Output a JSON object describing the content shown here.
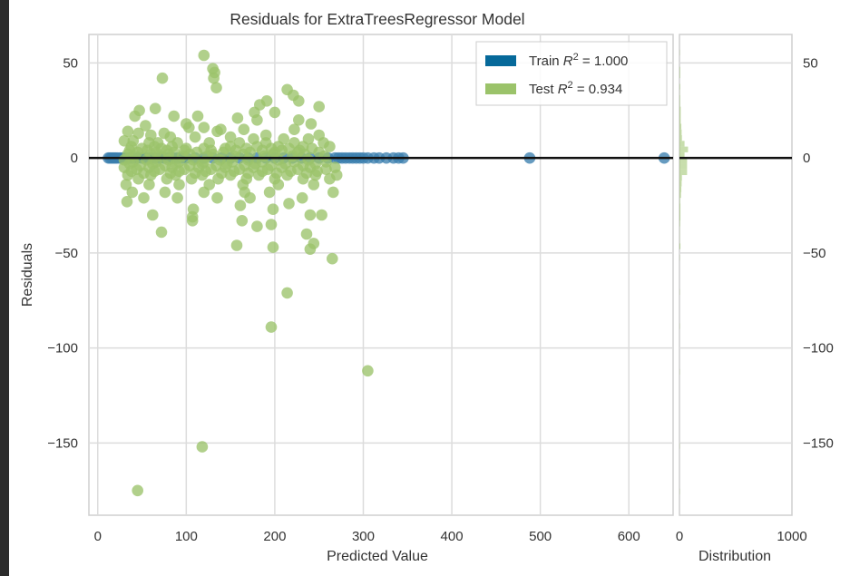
{
  "chart_data": {
    "type": "scatter",
    "title": "Residuals for ExtraTreesRegressor Model",
    "xlabel": "Predicted Value",
    "ylabel": "Residuals",
    "xlim": [
      -10,
      650
    ],
    "ylim": [
      -188,
      65
    ],
    "xticks": [
      0,
      100,
      200,
      300,
      400,
      500,
      600
    ],
    "yticks": [
      50,
      0,
      -50,
      -100,
      -150
    ],
    "tick_text": {
      "x": [
        "0",
        "100",
        "200",
        "300",
        "400",
        "500",
        "600"
      ],
      "y": [
        "50",
        "0",
        "−50",
        "−100",
        "−150"
      ]
    },
    "grid": true,
    "zero_line": 0,
    "legend": {
      "placement": "top-right",
      "entries": [
        {
          "name": "Train",
          "r2_label": "R",
          "r2_sup": "2",
          "r2_value": " = 1.000",
          "color": "#1f77b4"
        },
        {
          "name": "Test",
          "r2_label": "R",
          "r2_sup": "2",
          "r2_value": " = 0.934",
          "color": "#9bc36a"
        }
      ]
    },
    "series": [
      {
        "name": "Train",
        "color": "#3b7fae",
        "points": [
          [
            12,
            0
          ],
          [
            14,
            0
          ],
          [
            16,
            0
          ],
          [
            18,
            0
          ],
          [
            20,
            0
          ],
          [
            22,
            0
          ],
          [
            25,
            0
          ],
          [
            28,
            0
          ],
          [
            32,
            0
          ],
          [
            36,
            0
          ],
          [
            40,
            0
          ],
          [
            45,
            0
          ],
          [
            50,
            0
          ],
          [
            55,
            0
          ],
          [
            60,
            0
          ],
          [
            65,
            0
          ],
          [
            70,
            0
          ],
          [
            75,
            0
          ],
          [
            80,
            0
          ],
          [
            85,
            0
          ],
          [
            90,
            0
          ],
          [
            95,
            0
          ],
          [
            100,
            0
          ],
          [
            110,
            0
          ],
          [
            120,
            0
          ],
          [
            130,
            0
          ],
          [
            140,
            0
          ],
          [
            150,
            0
          ],
          [
            160,
            0
          ],
          [
            170,
            0
          ],
          [
            180,
            0
          ],
          [
            190,
            0
          ],
          [
            200,
            0
          ],
          [
            210,
            0
          ],
          [
            220,
            0
          ],
          [
            230,
            0
          ],
          [
            240,
            0
          ],
          [
            250,
            0
          ],
          [
            260,
            0
          ],
          [
            268,
            0
          ],
          [
            272,
            0
          ],
          [
            276,
            0
          ],
          [
            280,
            0
          ],
          [
            284,
            0
          ],
          [
            288,
            0
          ],
          [
            292,
            0
          ],
          [
            296,
            0
          ],
          [
            300,
            0
          ],
          [
            305,
            0
          ],
          [
            312,
            0
          ],
          [
            318,
            0
          ],
          [
            326,
            0
          ],
          [
            334,
            0
          ],
          [
            340,
            0
          ],
          [
            345,
            0
          ],
          [
            488,
            0
          ],
          [
            640,
            0
          ]
        ]
      },
      {
        "name": "Test",
        "color": "#9bc36a",
        "points": [
          [
            120,
            54
          ],
          [
            130,
            47
          ],
          [
            132,
            45
          ],
          [
            131,
            42
          ],
          [
            73,
            42
          ],
          [
            134,
            37
          ],
          [
            214,
            36
          ],
          [
            221,
            33
          ],
          [
            227,
            30
          ],
          [
            191,
            30
          ],
          [
            183,
            28
          ],
          [
            250,
            27
          ],
          [
            65,
            26
          ],
          [
            47,
            25
          ],
          [
            177,
            24
          ],
          [
            200,
            24
          ],
          [
            42,
            22
          ],
          [
            86,
            22
          ],
          [
            113,
            22
          ],
          [
            158,
            21
          ],
          [
            180,
            20
          ],
          [
            227,
            20
          ],
          [
            241,
            18
          ],
          [
            100,
            18
          ],
          [
            54,
            17
          ],
          [
            103,
            16
          ],
          [
            120,
            16
          ],
          [
            139,
            15
          ],
          [
            165,
            15
          ],
          [
            222,
            15
          ],
          [
            34,
            14
          ],
          [
            46,
            13
          ],
          [
            75,
            13
          ],
          [
            135,
            14
          ],
          [
            190,
            12
          ],
          [
            250,
            12
          ],
          [
            60,
            12
          ],
          [
            82,
            11
          ],
          [
            110,
            11
          ],
          [
            150,
            11
          ],
          [
            176,
            10
          ],
          [
            210,
            10
          ],
          [
            238,
            10
          ],
          [
            30,
            9
          ],
          [
            40,
            9
          ],
          [
            58,
            8
          ],
          [
            68,
            8
          ],
          [
            90,
            8
          ],
          [
            126,
            8
          ],
          [
            160,
            8
          ],
          [
            190,
            8
          ],
          [
            222,
            8
          ],
          [
            255,
            8
          ],
          [
            38,
            6
          ],
          [
            64,
            6
          ],
          [
            84,
            6
          ],
          [
            150,
            6
          ],
          [
            180,
            6
          ],
          [
            204,
            6
          ],
          [
            232,
            6
          ],
          [
            262,
            6
          ],
          [
            50,
            5
          ],
          [
            72,
            5
          ],
          [
            100,
            5
          ],
          [
            120,
            5
          ],
          [
            144,
            5
          ],
          [
            168,
            5
          ],
          [
            196,
            5
          ],
          [
            216,
            5
          ],
          [
            242,
            5
          ],
          [
            36,
            4
          ],
          [
            56,
            4
          ],
          [
            78,
            4
          ],
          [
            98,
            4
          ],
          [
            128,
            4
          ],
          [
            156,
            4
          ],
          [
            186,
            4
          ],
          [
            208,
            4
          ],
          [
            228,
            4
          ],
          [
            45,
            3
          ],
          [
            66,
            3
          ],
          [
            86,
            3
          ],
          [
            112,
            3
          ],
          [
            142,
            3
          ],
          [
            172,
            3
          ],
          [
            200,
            3
          ],
          [
            226,
            3
          ],
          [
            250,
            3
          ],
          [
            34,
            2
          ],
          [
            60,
            2
          ],
          [
            80,
            2
          ],
          [
            104,
            2
          ],
          [
            130,
            2
          ],
          [
            164,
            2
          ],
          [
            198,
            2
          ],
          [
            234,
            2
          ],
          [
            42,
            1
          ],
          [
            70,
            1
          ],
          [
            96,
            1
          ],
          [
            124,
            1
          ],
          [
            154,
            1
          ],
          [
            188,
            1
          ],
          [
            220,
            1
          ],
          [
            256,
            1
          ],
          [
            30,
            -1
          ],
          [
            55,
            -1
          ],
          [
            80,
            -1
          ],
          [
            108,
            -1
          ],
          [
            138,
            -1
          ],
          [
            170,
            -1
          ],
          [
            204,
            -1
          ],
          [
            238,
            -1
          ],
          [
            40,
            -2
          ],
          [
            66,
            -2
          ],
          [
            92,
            -2
          ],
          [
            120,
            -2
          ],
          [
            152,
            -2
          ],
          [
            186,
            -2
          ],
          [
            222,
            -2
          ],
          [
            258,
            -2
          ],
          [
            36,
            -3
          ],
          [
            62,
            -3
          ],
          [
            88,
            -3
          ],
          [
            118,
            -3
          ],
          [
            146,
            -3
          ],
          [
            178,
            -3
          ],
          [
            212,
            -3
          ],
          [
            246,
            -3
          ],
          [
            48,
            -4
          ],
          [
            76,
            -4
          ],
          [
            104,
            -4
          ],
          [
            134,
            -4
          ],
          [
            166,
            -4
          ],
          [
            196,
            -4
          ],
          [
            232,
            -4
          ],
          [
            30,
            -5
          ],
          [
            58,
            -5
          ],
          [
            84,
            -5
          ],
          [
            114,
            -5
          ],
          [
            144,
            -5
          ],
          [
            176,
            -5
          ],
          [
            208,
            -5
          ],
          [
            240,
            -5
          ],
          [
            268,
            -5
          ],
          [
            44,
            -6
          ],
          [
            70,
            -6
          ],
          [
            98,
            -6
          ],
          [
            128,
            -6
          ],
          [
            160,
            -6
          ],
          [
            192,
            -6
          ],
          [
            226,
            -6
          ],
          [
            258,
            -6
          ],
          [
            38,
            -7
          ],
          [
            64,
            -7
          ],
          [
            92,
            -7
          ],
          [
            122,
            -7
          ],
          [
            154,
            -7
          ],
          [
            186,
            -7
          ],
          [
            218,
            -7
          ],
          [
            248,
            -7
          ],
          [
            52,
            -8
          ],
          [
            82,
            -8
          ],
          [
            110,
            -8
          ],
          [
            140,
            -8
          ],
          [
            170,
            -8
          ],
          [
            202,
            -8
          ],
          [
            236,
            -8
          ],
          [
            34,
            -9
          ],
          [
            60,
            -9
          ],
          [
            88,
            -9
          ],
          [
            118,
            -9
          ],
          [
            150,
            -9
          ],
          [
            182,
            -9
          ],
          [
            214,
            -9
          ],
          [
            246,
            -9
          ],
          [
            270,
            -9
          ],
          [
            46,
            -11
          ],
          [
            78,
            -11
          ],
          [
            106,
            -11
          ],
          [
            136,
            -11
          ],
          [
            168,
            -11
          ],
          [
            200,
            -11
          ],
          [
            232,
            -11
          ],
          [
            262,
            -11
          ],
          [
            32,
            -14
          ],
          [
            58,
            -14
          ],
          [
            92,
            -14
          ],
          [
            126,
            -14
          ],
          [
            164,
            -14
          ],
          [
            204,
            -14
          ],
          [
            244,
            -14
          ],
          [
            266,
            -18
          ],
          [
            39,
            -18
          ],
          [
            76,
            -18
          ],
          [
            120,
            -18
          ],
          [
            166,
            -18
          ],
          [
            194,
            -18
          ],
          [
            231,
            -21
          ],
          [
            52,
            -21
          ],
          [
            90,
            -21
          ],
          [
            135,
            -21
          ],
          [
            172,
            -21
          ],
          [
            33,
            -23
          ],
          [
            216,
            -24
          ],
          [
            108,
            -27
          ],
          [
            198,
            -27
          ],
          [
            161,
            -25
          ],
          [
            62,
            -30
          ],
          [
            107,
            -31
          ],
          [
            253,
            -30
          ],
          [
            240,
            -30
          ],
          [
            107,
            -33
          ],
          [
            163,
            -33
          ],
          [
            196,
            -35
          ],
          [
            180,
            -36
          ],
          [
            72,
            -39
          ],
          [
            236,
            -40
          ],
          [
            244,
            -45
          ],
          [
            157,
            -46
          ],
          [
            198,
            -47
          ],
          [
            240,
            -48
          ],
          [
            265,
            -53
          ],
          [
            214,
            -71
          ],
          [
            196,
            -89
          ],
          [
            305,
            -112
          ],
          [
            118,
            -152
          ],
          [
            45,
            -175
          ]
        ]
      }
    ],
    "distribution_panel": {
      "xlabel": "Distribution",
      "xlim": [
        0,
        1000
      ],
      "xticks": [
        0,
        1000
      ],
      "tick_text": [
        "0",
        "1000"
      ]
    }
  }
}
